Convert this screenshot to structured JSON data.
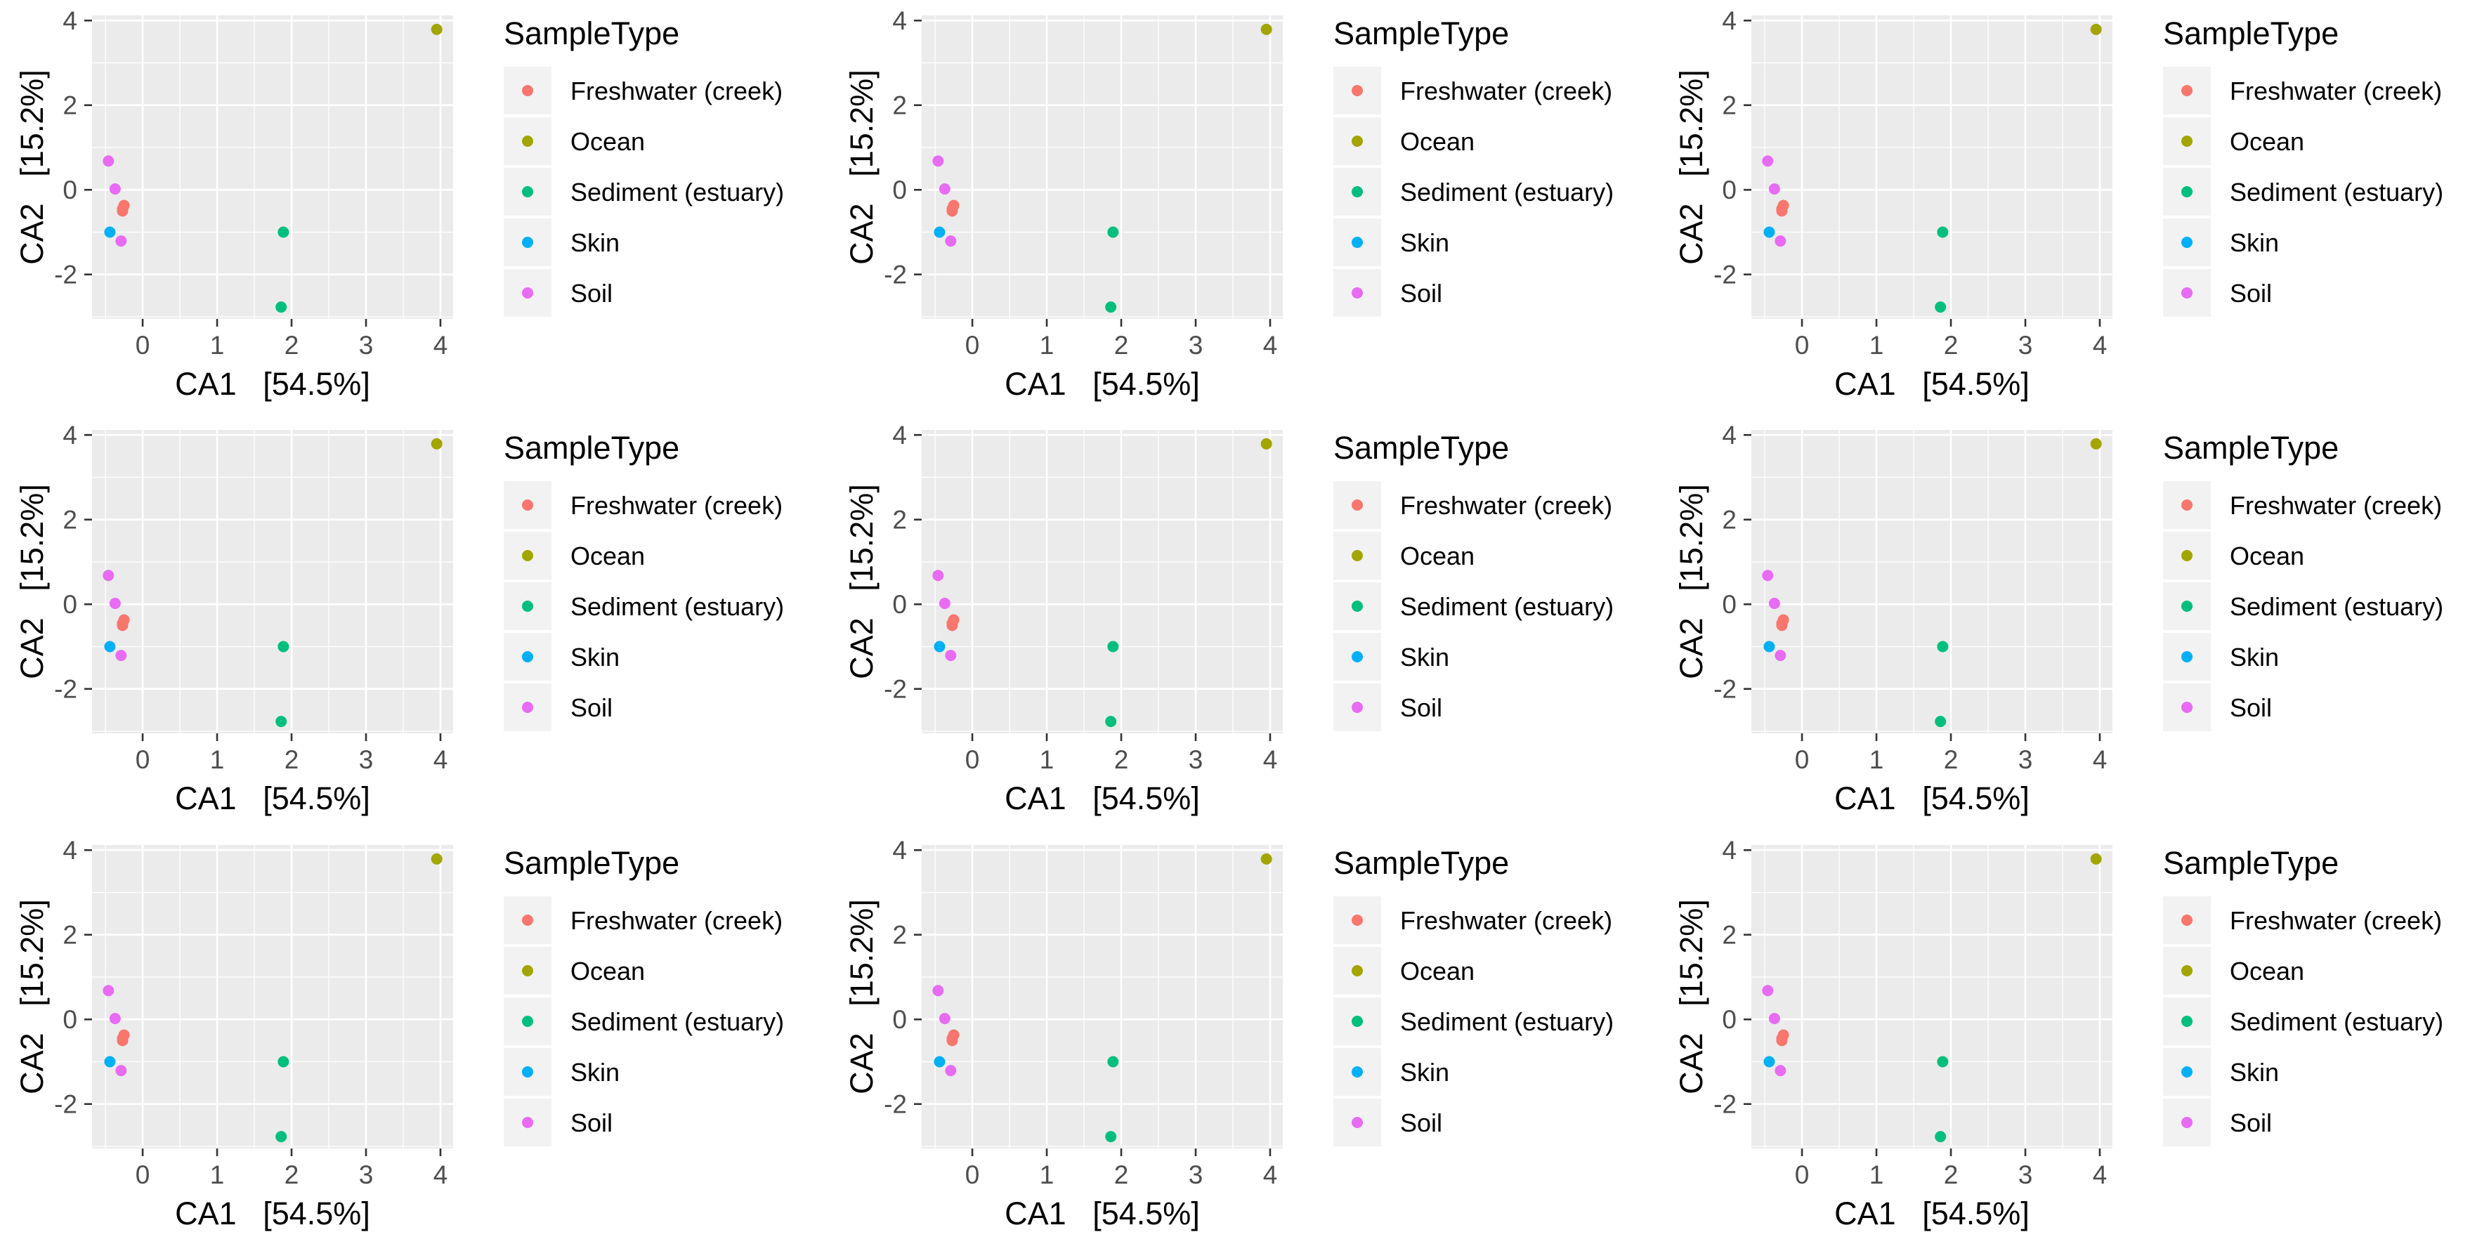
{
  "chart_data": [
    {
      "type": "scatter",
      "xlabel": "CA1   [54.5%]",
      "ylabel": "CA2   [15.2%]",
      "xlim": [
        -0.68,
        4.17
      ],
      "ylim": [
        -3.05,
        4.12
      ],
      "xticks": [
        0,
        1,
        2,
        3,
        4
      ],
      "yticks": [
        -2,
        0,
        2,
        4
      ],
      "grid": true,
      "background": "#EBEBEB",
      "legend": {
        "title": "SampleType",
        "position": "right"
      },
      "series": [
        {
          "name": "Freshwater (creek)",
          "color": "#F8766D",
          "points": [
            [
              -0.25,
              -0.37
            ],
            [
              -0.27,
              -0.45
            ],
            [
              -0.27,
              -0.5
            ]
          ]
        },
        {
          "name": "Ocean",
          "color": "#A3A500",
          "points": [
            [
              3.95,
              3.79
            ]
          ]
        },
        {
          "name": "Sediment (estuary)",
          "color": "#00BF7D",
          "points": [
            [
              1.89,
              -1.0
            ],
            [
              1.86,
              -2.77
            ]
          ]
        },
        {
          "name": "Skin",
          "color": "#00B0F6",
          "points": [
            [
              -0.44,
              -1.0
            ]
          ]
        },
        {
          "name": "Soil",
          "color": "#E76BF3",
          "points": [
            [
              -0.46,
              0.68
            ],
            [
              -0.37,
              0.02
            ],
            [
              -0.29,
              -1.21
            ]
          ]
        }
      ]
    },
    {
      "type": "scatter",
      "xlabel": "CA1   [54.5%]",
      "ylabel": "CA2   [15.2%]",
      "xlim": [
        -0.68,
        4.17
      ],
      "ylim": [
        -3.05,
        4.12
      ],
      "xticks": [
        0,
        1,
        2,
        3,
        4
      ],
      "yticks": [
        -2,
        0,
        2,
        4
      ],
      "grid": true,
      "background": "#EBEBEB",
      "legend": {
        "title": "SampleType",
        "position": "right"
      },
      "series": [
        {
          "name": "Freshwater (creek)",
          "color": "#F8766D",
          "points": [
            [
              -0.25,
              -0.37
            ],
            [
              -0.27,
              -0.45
            ],
            [
              -0.27,
              -0.5
            ]
          ]
        },
        {
          "name": "Ocean",
          "color": "#A3A500",
          "points": [
            [
              3.95,
              3.79
            ]
          ]
        },
        {
          "name": "Sediment (estuary)",
          "color": "#00BF7D",
          "points": [
            [
              1.89,
              -1.0
            ],
            [
              1.86,
              -2.77
            ]
          ]
        },
        {
          "name": "Skin",
          "color": "#00B0F6",
          "points": [
            [
              -0.44,
              -1.0
            ]
          ]
        },
        {
          "name": "Soil",
          "color": "#E76BF3",
          "points": [
            [
              -0.46,
              0.68
            ],
            [
              -0.37,
              0.02
            ],
            [
              -0.29,
              -1.21
            ]
          ]
        }
      ]
    },
    {
      "type": "scatter",
      "xlabel": "CA1   [54.5%]",
      "ylabel": "CA2   [15.2%]",
      "xlim": [
        -0.68,
        4.17
      ],
      "ylim": [
        -3.05,
        4.12
      ],
      "xticks": [
        0,
        1,
        2,
        3,
        4
      ],
      "yticks": [
        -2,
        0,
        2,
        4
      ],
      "grid": true,
      "background": "#EBEBEB",
      "legend": {
        "title": "SampleType",
        "position": "right"
      },
      "series": [
        {
          "name": "Freshwater (creek)",
          "color": "#F8766D",
          "points": [
            [
              -0.25,
              -0.37
            ],
            [
              -0.27,
              -0.45
            ],
            [
              -0.27,
              -0.5
            ]
          ]
        },
        {
          "name": "Ocean",
          "color": "#A3A500",
          "points": [
            [
              3.95,
              3.79
            ]
          ]
        },
        {
          "name": "Sediment (estuary)",
          "color": "#00BF7D",
          "points": [
            [
              1.89,
              -1.0
            ],
            [
              1.86,
              -2.77
            ]
          ]
        },
        {
          "name": "Skin",
          "color": "#00B0F6",
          "points": [
            [
              -0.44,
              -1.0
            ]
          ]
        },
        {
          "name": "Soil",
          "color": "#E76BF3",
          "points": [
            [
              -0.46,
              0.68
            ],
            [
              -0.37,
              0.02
            ],
            [
              -0.29,
              -1.21
            ]
          ]
        }
      ]
    },
    {
      "type": "scatter",
      "xlabel": "CA1   [54.5%]",
      "ylabel": "CA2   [15.2%]",
      "xlim": [
        -0.68,
        4.17
      ],
      "ylim": [
        -3.05,
        4.12
      ],
      "xticks": [
        0,
        1,
        2,
        3,
        4
      ],
      "yticks": [
        -2,
        0,
        2,
        4
      ],
      "grid": true,
      "background": "#EBEBEB",
      "legend": {
        "title": "SampleType",
        "position": "right"
      },
      "series": [
        {
          "name": "Freshwater (creek)",
          "color": "#F8766D",
          "points": [
            [
              -0.25,
              -0.37
            ],
            [
              -0.27,
              -0.45
            ],
            [
              -0.27,
              -0.5
            ]
          ]
        },
        {
          "name": "Ocean",
          "color": "#A3A500",
          "points": [
            [
              3.95,
              3.79
            ]
          ]
        },
        {
          "name": "Sediment (estuary)",
          "color": "#00BF7D",
          "points": [
            [
              1.89,
              -1.0
            ],
            [
              1.86,
              -2.77
            ]
          ]
        },
        {
          "name": "Skin",
          "color": "#00B0F6",
          "points": [
            [
              -0.44,
              -1.0
            ]
          ]
        },
        {
          "name": "Soil",
          "color": "#E76BF3",
          "points": [
            [
              -0.46,
              0.68
            ],
            [
              -0.37,
              0.02
            ],
            [
              -0.29,
              -1.21
            ]
          ]
        }
      ]
    },
    {
      "type": "scatter",
      "xlabel": "CA1   [54.5%]",
      "ylabel": "CA2   [15.2%]",
      "xlim": [
        -0.68,
        4.17
      ],
      "ylim": [
        -3.05,
        4.12
      ],
      "xticks": [
        0,
        1,
        2,
        3,
        4
      ],
      "yticks": [
        -2,
        0,
        2,
        4
      ],
      "grid": true,
      "background": "#EBEBEB",
      "legend": {
        "title": "SampleType",
        "position": "right"
      },
      "series": [
        {
          "name": "Freshwater (creek)",
          "color": "#F8766D",
          "points": [
            [
              -0.25,
              -0.37
            ],
            [
              -0.27,
              -0.45
            ],
            [
              -0.27,
              -0.5
            ]
          ]
        },
        {
          "name": "Ocean",
          "color": "#A3A500",
          "points": [
            [
              3.95,
              3.79
            ]
          ]
        },
        {
          "name": "Sediment (estuary)",
          "color": "#00BF7D",
          "points": [
            [
              1.89,
              -1.0
            ],
            [
              1.86,
              -2.77
            ]
          ]
        },
        {
          "name": "Skin",
          "color": "#00B0F6",
          "points": [
            [
              -0.44,
              -1.0
            ]
          ]
        },
        {
          "name": "Soil",
          "color": "#E76BF3",
          "points": [
            [
              -0.46,
              0.68
            ],
            [
              -0.37,
              0.02
            ],
            [
              -0.29,
              -1.21
            ]
          ]
        }
      ]
    },
    {
      "type": "scatter",
      "xlabel": "CA1   [54.5%]",
      "ylabel": "CA2   [15.2%]",
      "xlim": [
        -0.68,
        4.17
      ],
      "ylim": [
        -3.05,
        4.12
      ],
      "xticks": [
        0,
        1,
        2,
        3,
        4
      ],
      "yticks": [
        -2,
        0,
        2,
        4
      ],
      "grid": true,
      "background": "#EBEBEB",
      "legend": {
        "title": "SampleType",
        "position": "right"
      },
      "series": [
        {
          "name": "Freshwater (creek)",
          "color": "#F8766D",
          "points": [
            [
              -0.25,
              -0.37
            ],
            [
              -0.27,
              -0.45
            ],
            [
              -0.27,
              -0.5
            ]
          ]
        },
        {
          "name": "Ocean",
          "color": "#A3A500",
          "points": [
            [
              3.95,
              3.79
            ]
          ]
        },
        {
          "name": "Sediment (estuary)",
          "color": "#00BF7D",
          "points": [
            [
              1.89,
              -1.0
            ],
            [
              1.86,
              -2.77
            ]
          ]
        },
        {
          "name": "Skin",
          "color": "#00B0F6",
          "points": [
            [
              -0.44,
              -1.0
            ]
          ]
        },
        {
          "name": "Soil",
          "color": "#E76BF3",
          "points": [
            [
              -0.46,
              0.68
            ],
            [
              -0.37,
              0.02
            ],
            [
              -0.29,
              -1.21
            ]
          ]
        }
      ]
    },
    {
      "type": "scatter",
      "xlabel": "CA1   [54.5%]",
      "ylabel": "CA2   [15.2%]",
      "xlim": [
        -0.68,
        4.17
      ],
      "ylim": [
        -3.05,
        4.12
      ],
      "xticks": [
        0,
        1,
        2,
        3,
        4
      ],
      "yticks": [
        -2,
        0,
        2,
        4
      ],
      "grid": true,
      "background": "#EBEBEB",
      "legend": {
        "title": "SampleType",
        "position": "right"
      },
      "series": [
        {
          "name": "Freshwater (creek)",
          "color": "#F8766D",
          "points": [
            [
              -0.25,
              -0.37
            ],
            [
              -0.27,
              -0.45
            ],
            [
              -0.27,
              -0.5
            ]
          ]
        },
        {
          "name": "Ocean",
          "color": "#A3A500",
          "points": [
            [
              3.95,
              3.79
            ]
          ]
        },
        {
          "name": "Sediment (estuary)",
          "color": "#00BF7D",
          "points": [
            [
              1.89,
              -1.0
            ],
            [
              1.86,
              -2.77
            ]
          ]
        },
        {
          "name": "Skin",
          "color": "#00B0F6",
          "points": [
            [
              -0.44,
              -1.0
            ]
          ]
        },
        {
          "name": "Soil",
          "color": "#E76BF3",
          "points": [
            [
              -0.46,
              0.68
            ],
            [
              -0.37,
              0.02
            ],
            [
              -0.29,
              -1.21
            ]
          ]
        }
      ]
    },
    {
      "type": "scatter",
      "xlabel": "CA1   [54.5%]",
      "ylabel": "CA2   [15.2%]",
      "xlim": [
        -0.68,
        4.17
      ],
      "ylim": [
        -3.05,
        4.12
      ],
      "xticks": [
        0,
        1,
        2,
        3,
        4
      ],
      "yticks": [
        -2,
        0,
        2,
        4
      ],
      "grid": true,
      "background": "#EBEBEB",
      "legend": {
        "title": "SampleType",
        "position": "right"
      },
      "series": [
        {
          "name": "Freshwater (creek)",
          "color": "#F8766D",
          "points": [
            [
              -0.25,
              -0.37
            ],
            [
              -0.27,
              -0.45
            ],
            [
              -0.27,
              -0.5
            ]
          ]
        },
        {
          "name": "Ocean",
          "color": "#A3A500",
          "points": [
            [
              3.95,
              3.79
            ]
          ]
        },
        {
          "name": "Sediment (estuary)",
          "color": "#00BF7D",
          "points": [
            [
              1.89,
              -1.0
            ],
            [
              1.86,
              -2.77
            ]
          ]
        },
        {
          "name": "Skin",
          "color": "#00B0F6",
          "points": [
            [
              -0.44,
              -1.0
            ]
          ]
        },
        {
          "name": "Soil",
          "color": "#E76BF3",
          "points": [
            [
              -0.46,
              0.68
            ],
            [
              -0.37,
              0.02
            ],
            [
              -0.29,
              -1.21
            ]
          ]
        }
      ]
    },
    {
      "type": "scatter",
      "xlabel": "CA1   [54.5%]",
      "ylabel": "CA2   [15.2%]",
      "xlim": [
        -0.68,
        4.17
      ],
      "ylim": [
        -3.05,
        4.12
      ],
      "xticks": [
        0,
        1,
        2,
        3,
        4
      ],
      "yticks": [
        -2,
        0,
        2,
        4
      ],
      "grid": true,
      "background": "#EBEBEB",
      "legend": {
        "title": "SampleType",
        "position": "right"
      },
      "series": [
        {
          "name": "Freshwater (creek)",
          "color": "#F8766D",
          "points": [
            [
              -0.25,
              -0.37
            ],
            [
              -0.27,
              -0.45
            ],
            [
              -0.27,
              -0.5
            ]
          ]
        },
        {
          "name": "Ocean",
          "color": "#A3A500",
          "points": [
            [
              3.95,
              3.79
            ]
          ]
        },
        {
          "name": "Sediment (estuary)",
          "color": "#00BF7D",
          "points": [
            [
              1.89,
              -1.0
            ],
            [
              1.86,
              -2.77
            ]
          ]
        },
        {
          "name": "Skin",
          "color": "#00B0F6",
          "points": [
            [
              -0.44,
              -1.0
            ]
          ]
        },
        {
          "name": "Soil",
          "color": "#E76BF3",
          "points": [
            [
              -0.46,
              0.68
            ],
            [
              -0.37,
              0.02
            ],
            [
              -0.29,
              -1.21
            ]
          ]
        }
      ]
    }
  ]
}
